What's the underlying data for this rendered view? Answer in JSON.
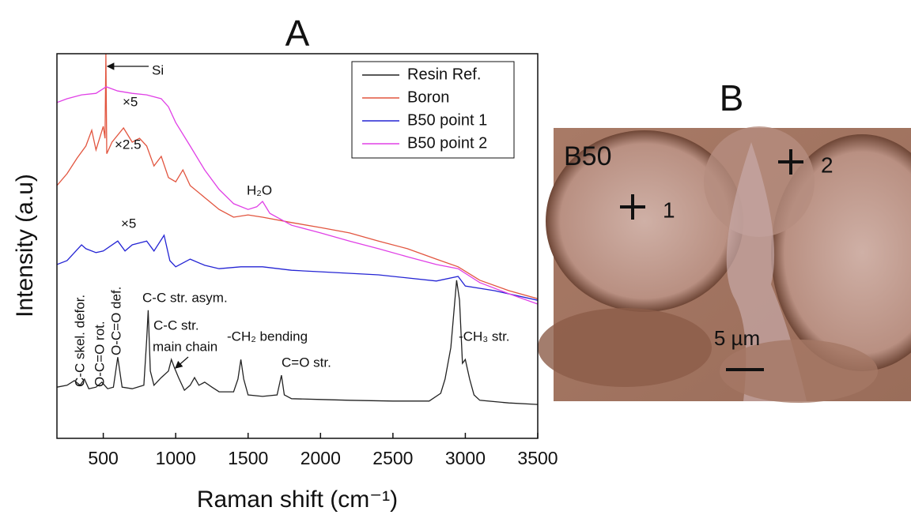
{
  "chart_data": {
    "type": "line",
    "title": "A",
    "xlabel": "Raman shift (cm⁻¹)",
    "ylabel": "Intensity (a.u)",
    "xlim": [
      180,
      3500
    ],
    "ylim": [
      0,
      100
    ],
    "xticks": [
      500,
      1000,
      1500,
      2000,
      2500,
      3000,
      3500
    ],
    "legend": "upper right",
    "series": [
      {
        "name": "Resin Ref.",
        "color": "#222222",
        "x": [
          180,
          250,
          300,
          340,
          370,
          400,
          450,
          490,
          530,
          570,
          600,
          630,
          700,
          780,
          800,
          810,
          825,
          850,
          900,
          950,
          970,
          990,
          1020,
          1060,
          1100,
          1130,
          1160,
          1200,
          1250,
          1300,
          1400,
          1430,
          1450,
          1470,
          1500,
          1600,
          1700,
          1730,
          1750,
          1800,
          2000,
          2200,
          2500,
          2750,
          2830,
          2860,
          2900,
          2940,
          2960,
          2980,
          3000,
          3030,
          3060,
          3100,
          3300,
          3500
        ],
        "values": [
          13.3,
          13.8,
          15.0,
          13.8,
          15.4,
          12.9,
          13.3,
          14.6,
          12.9,
          13.3,
          21.1,
          13.3,
          12.9,
          13.8,
          25.7,
          33.3,
          17.5,
          13.8,
          15.8,
          17.5,
          20.5,
          18.5,
          15.8,
          12.5,
          13.8,
          15.8,
          13.8,
          14.6,
          13.3,
          12.1,
          12.1,
          15.4,
          20.5,
          15.4,
          11.3,
          10.9,
          11.3,
          16.4,
          11.3,
          10.3,
          10.1,
          9.9,
          9.7,
          9.7,
          11.7,
          15.4,
          23.6,
          41.1,
          35.9,
          19.5,
          20.5,
          15.4,
          11.3,
          9.9,
          9.2,
          8.8
        ]
      },
      {
        "name": "Boron",
        "color": "#e2553f",
        "x": [
          180,
          250,
          320,
          380,
          420,
          450,
          500,
          512,
          518,
          524,
          560,
          640,
          700,
          750,
          800,
          850,
          900,
          950,
          1000,
          1050,
          1100,
          1200,
          1300,
          1400,
          1500,
          1600,
          1800,
          2000,
          2200,
          2400,
          2600,
          2800,
          2950,
          3100,
          3300,
          3500
        ],
        "values": [
          65.7,
          68.8,
          72.9,
          76.0,
          80.1,
          75.0,
          81.1,
          78.0,
          100.0,
          74.0,
          77.0,
          80.7,
          77.0,
          78.0,
          76.0,
          70.8,
          73.3,
          67.8,
          66.7,
          69.8,
          65.7,
          62.6,
          59.5,
          57.5,
          58.1,
          57.5,
          56.1,
          54.8,
          53.4,
          51.3,
          49.3,
          46.6,
          44.6,
          41.1,
          38.4,
          36.3
        ]
      },
      {
        "name": "B50 point 1",
        "color": "#2424d4",
        "x": [
          180,
          250,
          350,
          380,
          450,
          500,
          600,
          650,
          700,
          800,
          850,
          920,
          960,
          1000,
          1100,
          1200,
          1300,
          1450,
          1600,
          1800,
          2000,
          2400,
          2800,
          2950,
          3000,
          3200,
          3500
        ],
        "values": [
          45.2,
          46.2,
          50.3,
          49.3,
          48.3,
          48.7,
          51.3,
          48.7,
          50.3,
          51.3,
          48.7,
          52.8,
          46.2,
          44.6,
          46.6,
          45.0,
          44.1,
          44.6,
          44.6,
          43.7,
          43.3,
          42.5,
          40.9,
          42.1,
          39.6,
          38.4,
          35.9
        ]
      },
      {
        "name": "B50 point 2",
        "color": "#e040e6",
        "x": [
          180,
          250,
          350,
          450,
          520,
          600,
          700,
          800,
          900,
          950,
          1000,
          1100,
          1200,
          1300,
          1400,
          1500,
          1560,
          1600,
          1650,
          1800,
          2000,
          2200,
          2400,
          2600,
          2800,
          2950,
          3100,
          3300,
          3500
        ],
        "values": [
          87.3,
          88.3,
          89.3,
          89.7,
          91.4,
          90.3,
          89.7,
          89.3,
          88.3,
          86.2,
          82.1,
          76.0,
          69.8,
          64.7,
          61.0,
          59.5,
          60.2,
          61.6,
          58.5,
          55.4,
          53.4,
          51.3,
          49.3,
          47.2,
          45.2,
          44.1,
          40.5,
          37.6,
          34.9
        ]
      }
    ],
    "annotations": [
      "×5",
      "Si",
      "×2.5",
      "H₂O",
      "×5",
      "C-C skel. defor.",
      "O-C=O rot.",
      "O-C=O def.",
      "C-C str. asym.",
      "C-C str.",
      "main chain",
      "-CH₂ bending",
      "C=O str.",
      "-CH₃ str."
    ]
  },
  "panel_b": {
    "label": "B",
    "sample": "B50",
    "points": [
      "1",
      "2"
    ],
    "scale_bar": "5 µm"
  }
}
